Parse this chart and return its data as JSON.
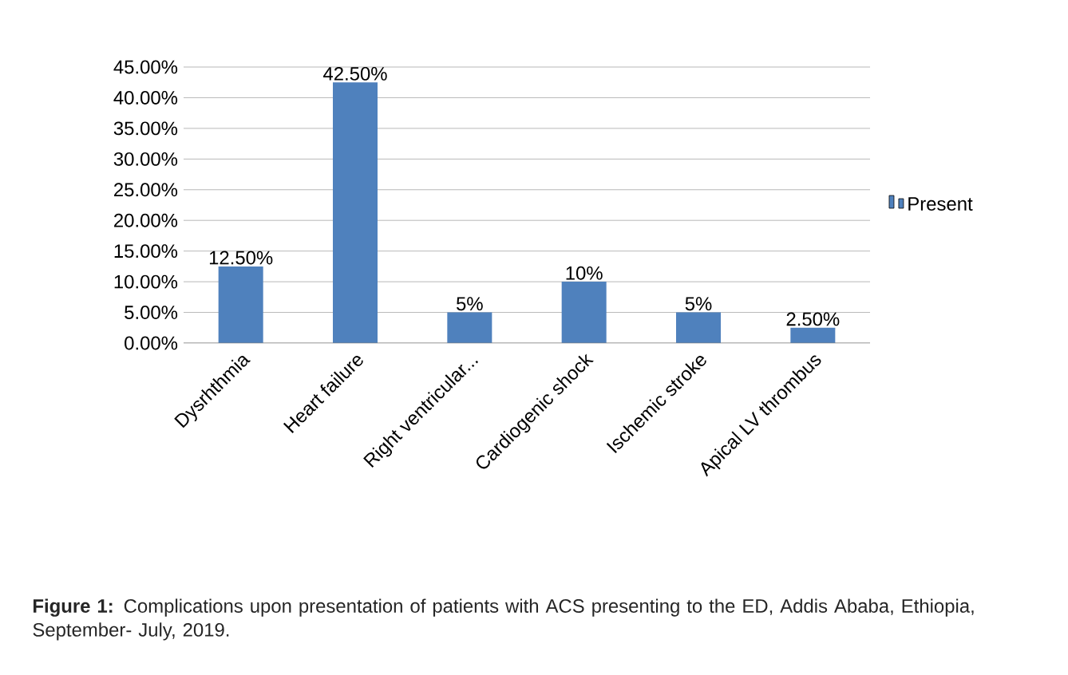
{
  "chart_data": {
    "type": "bar",
    "categories": [
      "Dysrhthmia",
      "Heart failure",
      "Right ventricular...",
      "Cardiogenic shock",
      "Ischemic stroke",
      "Apical LV thrombus"
    ],
    "series": [
      {
        "name": "Present",
        "color": "#4f81bd",
        "values": [
          12.5,
          42.5,
          5,
          10,
          5,
          2.5
        ],
        "value_labels": [
          "12.50%",
          "42.50%",
          "5%",
          "10%",
          "5%",
          "2.50%"
        ]
      }
    ],
    "ylim": [
      0,
      45
    ],
    "yticks": [
      {
        "value": 0,
        "label": "0.00%"
      },
      {
        "value": 5,
        "label": "5.00%"
      },
      {
        "value": 10,
        "label": "10.00%"
      },
      {
        "value": 15,
        "label": "15.00%"
      },
      {
        "value": 20,
        "label": "20.00%"
      },
      {
        "value": 25,
        "label": "25.00%"
      },
      {
        "value": 30,
        "label": "30.00%"
      },
      {
        "value": 35,
        "label": "35.00%"
      },
      {
        "value": 40,
        "label": "40.00%"
      },
      {
        "value": 45,
        "label": "45.00%"
      }
    ],
    "grid": "y",
    "legend": "right",
    "annotations": [
      "**Figure 1:** Complications upon presentation of patients with ACS presenting to the ED, Addis Ababa, Ethiopia, September- July, 2019."
    ]
  }
}
